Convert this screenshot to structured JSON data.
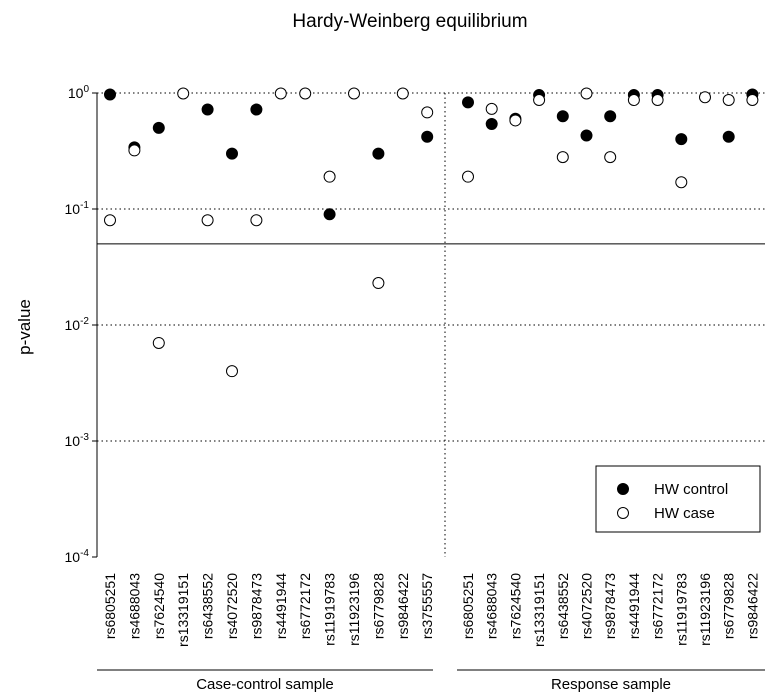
{
  "chart_data": {
    "type": "scatter",
    "title": "Hardy-Weinberg equilibrium",
    "ylabel": "p-value",
    "yscale": "log",
    "ylim": [
      0.0001,
      1
    ],
    "yticks": [
      {
        "value": 1,
        "base": "10",
        "exp": "0"
      },
      {
        "value": 0.1,
        "base": "10",
        "exp": "-1"
      },
      {
        "value": 0.01,
        "base": "10",
        "exp": "-2"
      },
      {
        "value": 0.001,
        "base": "10",
        "exp": "-3"
      },
      {
        "value": 0.0001,
        "base": "10",
        "exp": "-4"
      }
    ],
    "threshold": 0.05,
    "grid": "dotted horizontal",
    "legend": {
      "position": "bottom-right",
      "entries": [
        {
          "label": "HW control",
          "marker": "filled-circle"
        },
        {
          "label": "HW case",
          "marker": "open-circle"
        }
      ]
    },
    "panels": [
      {
        "name": "Case-control sample",
        "categories": [
          "rs6805251",
          "rs4688043",
          "rs7624540",
          "rs13319151",
          "rs6438552",
          "rs4072520",
          "rs9878473",
          "rs4491944",
          "rs6772172",
          "rs11919783",
          "rs11923196",
          "rs6779828",
          "rs9846422",
          "rs3755557"
        ],
        "series": [
          {
            "name": "HW control",
            "values": [
              0.97,
              0.34,
              0.5,
              null,
              0.72,
              0.3,
              0.72,
              null,
              null,
              0.09,
              null,
              0.3,
              null,
              0.42
            ]
          },
          {
            "name": "HW case",
            "values": [
              0.08,
              0.32,
              0.007,
              0.99,
              0.08,
              0.004,
              0.08,
              0.99,
              0.99,
              0.19,
              0.99,
              0.023,
              0.99,
              0.68
            ]
          }
        ]
      },
      {
        "name": "Response sample",
        "categories": [
          "rs6805251",
          "rs4688043",
          "rs7624540",
          "rs13319151",
          "rs6438552",
          "rs4072520",
          "rs9878473",
          "rs4491944",
          "rs6772172",
          "rs11919783",
          "rs11923196",
          "rs6779828",
          "rs9846422"
        ],
        "series": [
          {
            "name": "HW control",
            "values": [
              0.83,
              0.54,
              0.6,
              0.96,
              0.63,
              0.43,
              0.63,
              0.96,
              0.96,
              0.4,
              null,
              0.42,
              0.97
            ]
          },
          {
            "name": "HW case",
            "values": [
              0.19,
              0.73,
              0.58,
              0.87,
              0.28,
              0.99,
              0.28,
              0.87,
              0.87,
              0.17,
              0.92,
              0.87,
              0.87
            ]
          }
        ]
      }
    ]
  }
}
